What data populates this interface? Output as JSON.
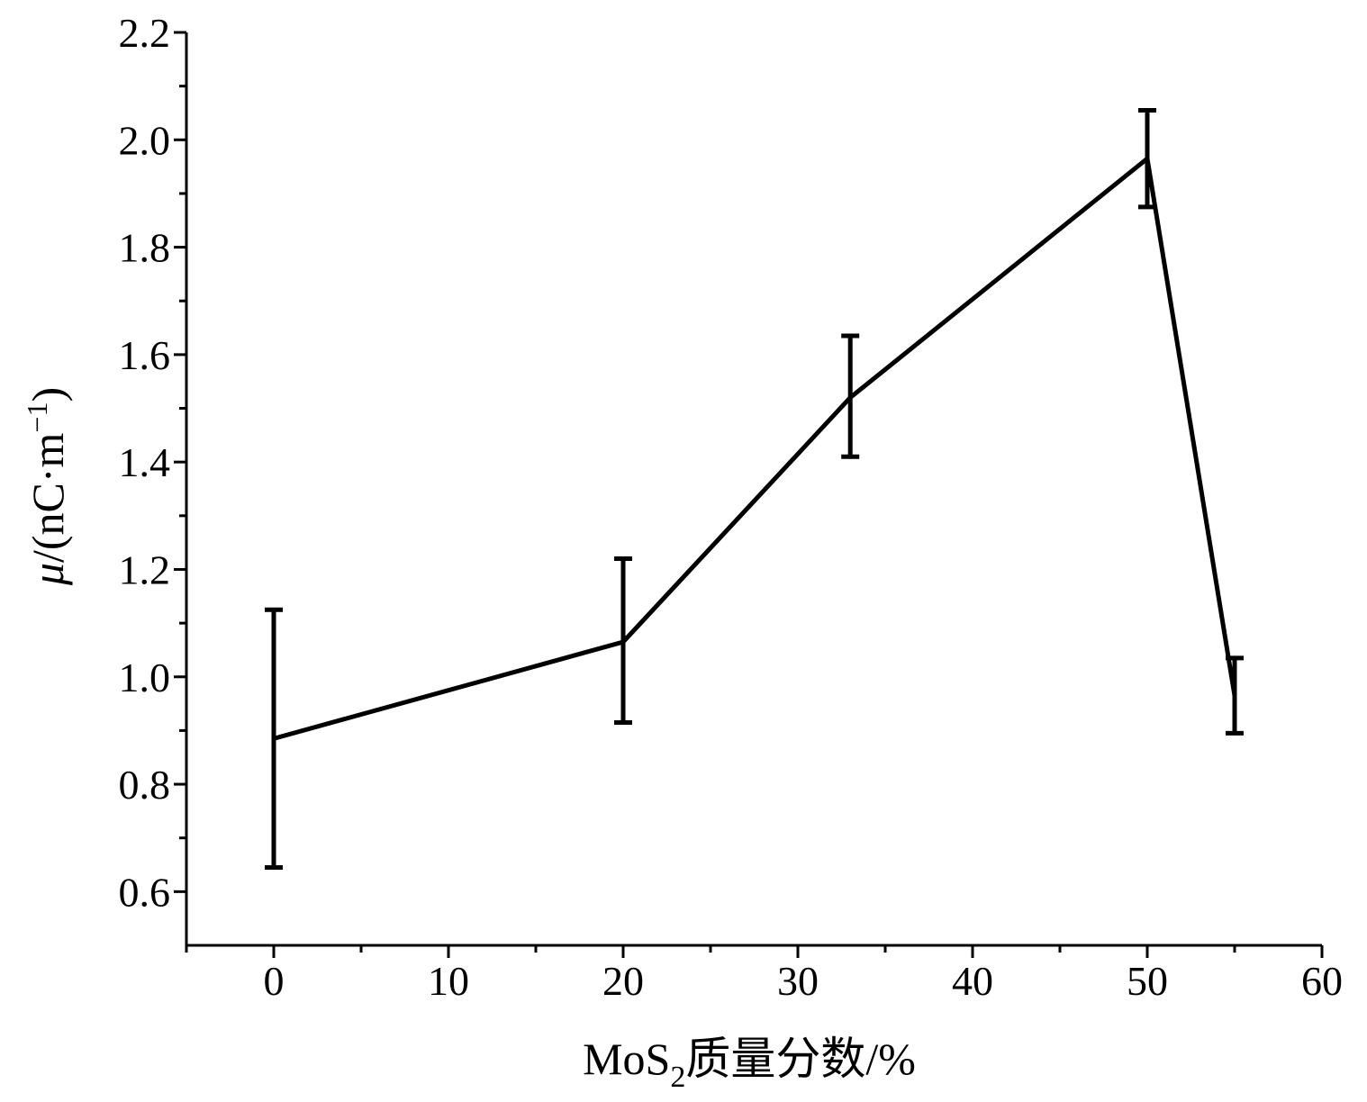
{
  "chart_data": {
    "type": "line",
    "x": [
      0,
      20,
      33,
      50,
      55
    ],
    "y": [
      0.885,
      1.065,
      1.52,
      1.965,
      0.965
    ],
    "error_low": [
      0.645,
      0.915,
      1.41,
      1.875,
      0.895
    ],
    "error_high": [
      1.125,
      1.22,
      1.635,
      2.055,
      1.035
    ],
    "xlim": [
      -5,
      60
    ],
    "ylim": [
      0.5,
      2.2
    ],
    "x_ticks": [
      0,
      10,
      20,
      30,
      40,
      50,
      60
    ],
    "x_tick_labels": [
      "0",
      "10",
      "20",
      "30",
      "40",
      "50",
      "60"
    ],
    "y_ticks": [
      0.6,
      0.8,
      1.0,
      1.2,
      1.4,
      1.6,
      1.8,
      2.0,
      2.2
    ],
    "y_tick_labels": [
      "0.6",
      "0.8",
      "1.0",
      "1.2",
      "1.4",
      "1.6",
      "1.8",
      "2.0",
      "2.2"
    ],
    "xlabel": {
      "pre": "MoS",
      "sub": "2",
      "post": "质量分数/%"
    },
    "ylabel": {
      "var": "μ",
      "unit": "/(nC·m",
      "sup": "−1",
      "close": ")"
    },
    "grid": false,
    "line_color": "#000000"
  }
}
